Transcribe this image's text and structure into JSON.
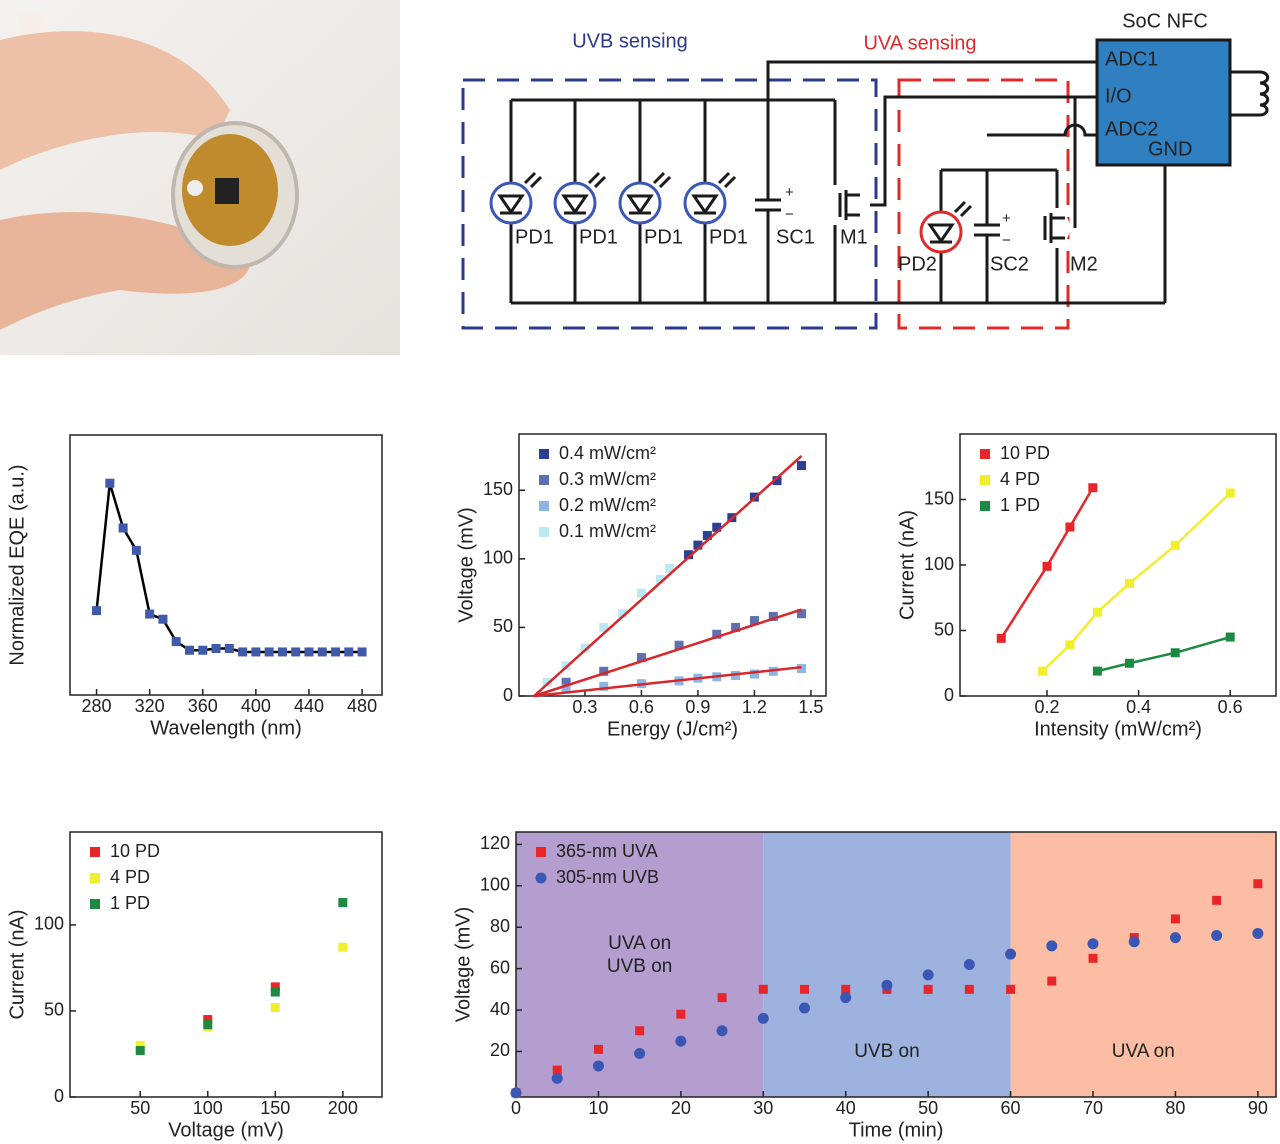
{
  "diagram": {
    "uvb_label": "UVB sensing",
    "uva_label": "UVA sensing",
    "chip": {
      "name": "SoC NFC",
      "pins": [
        "ADC1",
        "I/O",
        "ADC2",
        "GND"
      ]
    },
    "components": [
      "PD1",
      "PD1",
      "PD1",
      "PD1",
      "SC1",
      "M1",
      "PD2",
      "SC2",
      "M2"
    ],
    "capacitor_signs": {
      "plus": "+",
      "minus": "−"
    }
  },
  "chart_data": [
    {
      "type": "line",
      "ylabel": "Normalized EQE (a.u.)",
      "xlabel": "Wavelength (nm)",
      "xlim": [
        260,
        495
      ],
      "ylim": [
        -0.25,
        1.26
      ],
      "xticks": [
        280,
        320,
        360,
        400,
        440,
        480
      ],
      "series": [
        {
          "x": [
            280,
            290,
            300,
            310,
            320,
            330,
            340,
            350,
            360,
            370,
            380,
            390,
            400,
            410,
            420,
            430,
            440,
            450,
            460,
            470,
            480
          ],
          "values": [
            0.24,
            0.98,
            0.72,
            0.59,
            0.22,
            0.19,
            0.06,
            0.01,
            0.01,
            0.02,
            0.02,
            0,
            0,
            0,
            0,
            0,
            0,
            0,
            0,
            0,
            0
          ],
          "color": "#3f5aa9",
          "line_color": "#000000",
          "marker": "square"
        }
      ]
    },
    {
      "type": "scatter",
      "ylabel": "Voltage (mV)",
      "xlabel": "Energy (J/cm²)",
      "xlim": [
        -0.05,
        1.58
      ],
      "ylim": [
        0,
        191
      ],
      "xticks": [
        0.3,
        0.6,
        0.9,
        1.2,
        1.5
      ],
      "yticks": [
        0,
        50,
        100,
        150
      ],
      "legend": "upper left",
      "series": [
        {
          "name": "0.4 mW/cm²",
          "color": "#2b3f93",
          "marker": "square",
          "x": [
            0.85,
            0.9,
            0.95,
            1.0,
            1.08,
            1.2,
            1.32,
            1.45
          ],
          "values": [
            103,
            110,
            117,
            123,
            130,
            145,
            157,
            168
          ]
        },
        {
          "name": "0.3 mW/cm²",
          "color": "#5f6fb0",
          "marker": "square",
          "x": [
            0.2,
            0.4,
            0.6,
            0.8,
            1.0,
            1.1,
            1.2,
            1.3,
            1.45
          ],
          "values": [
            10,
            18,
            28,
            37,
            45,
            50,
            55,
            58,
            60
          ]
        },
        {
          "name": "0.2 mW/cm²",
          "color": "#8db4e3",
          "marker": "square",
          "x": [
            0.2,
            0.4,
            0.6,
            0.8,
            0.9,
            1.0,
            1.1,
            1.2,
            1.3,
            1.45
          ],
          "values": [
            5,
            7,
            9,
            11,
            13,
            14,
            15,
            16,
            18,
            20
          ]
        },
        {
          "name": "0.1 mW/cm²",
          "color": "#bde7f3",
          "marker": "square",
          "x": [
            0.1,
            0.2,
            0.3,
            0.4,
            0.5,
            0.6,
            0.7,
            0.75
          ],
          "values": [
            10,
            22,
            35,
            50,
            60,
            75,
            85,
            93
          ]
        }
      ],
      "fits": [
        {
          "color": "#d8262b",
          "x": [
            0.03,
            1.45
          ],
          "values": [
            0,
            175
          ]
        },
        {
          "color": "#d8262b",
          "x": [
            0.03,
            1.45
          ],
          "values": [
            0,
            63
          ]
        },
        {
          "color": "#d8262b",
          "x": [
            0.03,
            1.45
          ],
          "values": [
            0,
            21
          ]
        }
      ]
    },
    {
      "type": "line",
      "ylabel": "Current (nA)",
      "xlabel": "Intensity (mW/cm²)",
      "xlim": [
        0.01,
        0.7
      ],
      "ylim": [
        0,
        200
      ],
      "xticks": [
        0.2,
        0.4,
        0.6
      ],
      "yticks": [
        0,
        50,
        100,
        150
      ],
      "legend": "upper left",
      "series": [
        {
          "name": "10 PD",
          "color": "#e8262a",
          "marker": "square",
          "x": [
            0.1,
            0.2,
            0.25,
            0.3
          ],
          "values": [
            44,
            99,
            129,
            159
          ]
        },
        {
          "name": "4 PD",
          "color": "#f2ee2c",
          "marker": "square",
          "x": [
            0.19,
            0.25,
            0.31,
            0.38,
            0.48,
            0.6
          ],
          "values": [
            19,
            39,
            64,
            86,
            115,
            155
          ]
        },
        {
          "name": "1 PD",
          "color": "#1d8a43",
          "marker": "square",
          "x": [
            0.31,
            0.38,
            0.48,
            0.6
          ],
          "values": [
            19,
            25,
            33,
            45
          ]
        }
      ]
    },
    {
      "type": "scatter",
      "ylabel": "Current (nA)",
      "xlabel": "Voltage (mV)",
      "xlim": [
        -2,
        229
      ],
      "ylim": [
        0,
        154
      ],
      "xticks": [
        50,
        100,
        150,
        200
      ],
      "yticks": [
        0,
        50,
        100
      ],
      "legend": "upper left",
      "series": [
        {
          "name": "10 PD",
          "color": "#e8262a",
          "marker": "square",
          "x": [
            100,
            150
          ],
          "values": [
            45,
            64
          ]
        },
        {
          "name": "4 PD",
          "color": "#f2ee2c",
          "marker": "square",
          "x": [
            50,
            100,
            150,
            200
          ],
          "values": [
            30,
            41,
            52,
            87
          ]
        },
        {
          "name": "1 PD",
          "color": "#1d8a43",
          "marker": "square",
          "x": [
            50,
            100,
            150,
            200
          ],
          "values": [
            27,
            42,
            61,
            113
          ]
        }
      ]
    },
    {
      "type": "scatter",
      "ylabel": "Voltage (mV)",
      "xlabel": "Time (min)",
      "xlim": [
        0,
        92.2
      ],
      "ylim": [
        -2,
        126
      ],
      "xticks": [
        0,
        10,
        20,
        30,
        40,
        50,
        60,
        70,
        80,
        90
      ],
      "yticks": [
        20,
        40,
        60,
        80,
        100,
        120
      ],
      "legend": "upper left",
      "regions": [
        {
          "start": 0,
          "end": 30,
          "color": "#b49dcf",
          "label": [
            "UVA on",
            "UVB on"
          ]
        },
        {
          "start": 30,
          "end": 60,
          "color": "#9db2df",
          "label": [
            "UVB on"
          ]
        },
        {
          "start": 60,
          "end": 92.2,
          "color": "#fbbea4",
          "label": [
            "UVA on"
          ]
        }
      ],
      "series": [
        {
          "name": "365-nm UVA",
          "color": "#e8262a",
          "marker": "square",
          "x": [
            0,
            5,
            10,
            15,
            20,
            25,
            30,
            35,
            40,
            45,
            50,
            55,
            60,
            65,
            70,
            75,
            80,
            85,
            90
          ],
          "values": [
            0,
            11,
            21,
            30,
            38,
            46,
            50,
            50,
            50,
            50,
            50,
            50,
            50,
            54,
            65,
            75,
            84,
            93,
            101
          ]
        },
        {
          "name": "305-nm UVB",
          "color": "#3a57b5",
          "marker": "circle",
          "x": [
            0,
            5,
            10,
            15,
            20,
            25,
            30,
            35,
            40,
            45,
            50,
            55,
            60,
            65,
            70,
            75,
            80,
            85,
            90
          ],
          "values": [
            0,
            7,
            13,
            19,
            25,
            30,
            36,
            41,
            46,
            52,
            57,
            62,
            67,
            71,
            72,
            73,
            75,
            76,
            77
          ]
        }
      ]
    }
  ]
}
